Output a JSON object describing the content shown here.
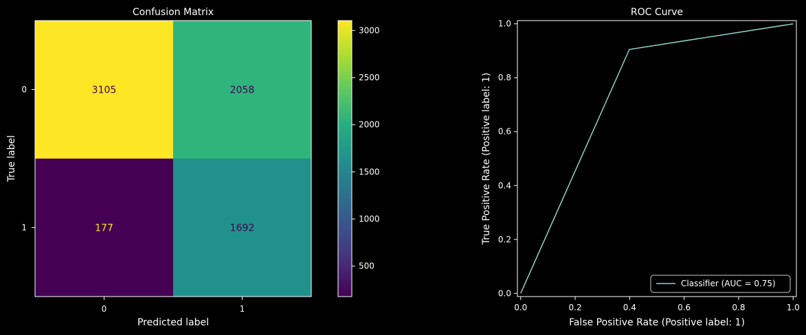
{
  "chart_data": [
    {
      "type": "heatmap",
      "title": "Confusion Matrix",
      "xlabel": "Predicted label",
      "ylabel": "True label",
      "x_categories": [
        "0",
        "1"
      ],
      "y_categories": [
        "0",
        "1"
      ],
      "values": [
        [
          3105,
          2058
        ],
        [
          177,
          1692
        ]
      ],
      "value_labels": [
        [
          "3105",
          "2058"
        ],
        [
          "177",
          "1692"
        ]
      ],
      "colormap": "viridis",
      "colorbar": {
        "range": [
          177,
          3105
        ],
        "ticks": [
          500,
          1000,
          1500,
          2000,
          2500,
          3000
        ],
        "tick_labels": [
          "500",
          "1000",
          "1500",
          "2000",
          "2500",
          "3000"
        ]
      },
      "colors": {
        "c3105": "#fde725",
        "c2058": "#2fb47c",
        "c177": "#440154",
        "c1692": "#21918c",
        "text_light": "#fde725",
        "text_dark": "#440154"
      }
    },
    {
      "type": "line",
      "title": "ROC Curve",
      "xlabel": "False Positive Rate (Positive label: 1)",
      "ylabel": "True Positive Rate (Positive label: 1)",
      "xlim": [
        0,
        1
      ],
      "ylim": [
        0,
        1
      ],
      "xticks": [
        0.0,
        0.2,
        0.4,
        0.6,
        0.8,
        1.0
      ],
      "xtick_labels": [
        "0.0",
        "0.2",
        "0.4",
        "0.6",
        "0.8",
        "1.0"
      ],
      "yticks": [
        0.0,
        0.2,
        0.4,
        0.6,
        0.8,
        1.0
      ],
      "ytick_labels": [
        "0.0",
        "0.2",
        "0.4",
        "0.6",
        "0.8",
        "1.0"
      ],
      "series": [
        {
          "name": "Classifier (AUC = 0.75)",
          "x": [
            0.0,
            0.399,
            1.0
          ],
          "y": [
            0.0,
            0.905,
            1.0
          ],
          "color": "#8dd3c7"
        }
      ],
      "legend_position": "lower-right",
      "grid": false
    }
  ]
}
